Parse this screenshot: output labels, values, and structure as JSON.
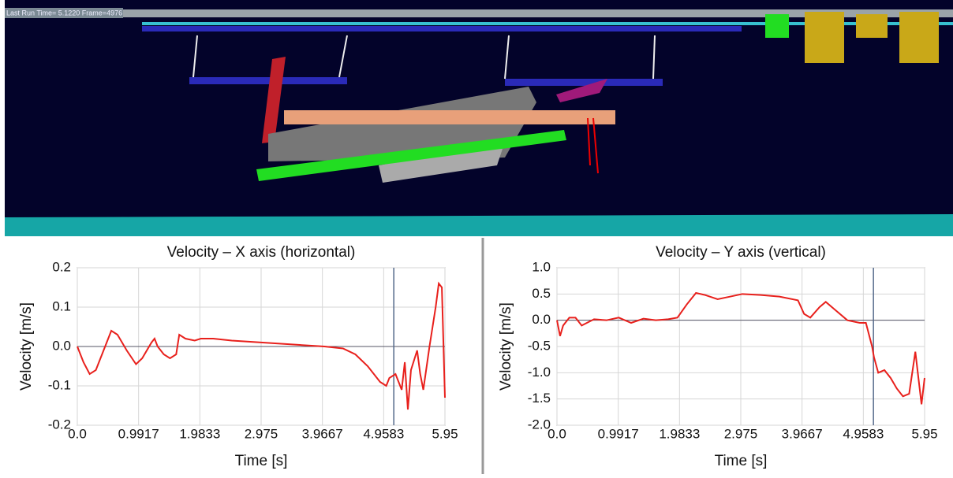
{
  "viewport_caption": "Last Run  Time= 5.1220  Frame=4976",
  "chart_data": [
    {
      "type": "line",
      "title": "Velocity – X axis (horizontal)",
      "x_label": "Time [s]",
      "y_label": "Velocity [m/s]",
      "x": [
        0,
        0.1,
        0.2,
        0.3,
        0.4,
        0.5,
        0.55,
        0.65,
        0.8,
        0.95,
        1.05,
        1.2,
        1.25,
        1.3,
        1.4,
        1.5,
        1.6,
        1.65,
        1.75,
        1.9,
        2.0,
        2.2,
        2.5,
        3.0,
        3.5,
        4.0,
        4.3,
        4.5,
        4.7,
        4.9,
        5.0,
        5.05,
        5.15,
        5.25,
        5.3,
        5.35,
        5.4,
        5.5,
        5.55,
        5.6,
        5.7,
        5.8,
        5.85,
        5.9,
        5.95
      ],
      "series": [
        {
          "color": "#e8201c",
          "values": [
            0,
            -0.04,
            -0.07,
            -0.06,
            -0.02,
            0.02,
            0.04,
            0.03,
            -0.01,
            -0.045,
            -0.03,
            0.01,
            0.02,
            0.0,
            -0.02,
            -0.03,
            -0.02,
            0.03,
            0.02,
            0.015,
            0.02,
            0.02,
            0.015,
            0.01,
            0.005,
            0.0,
            -0.005,
            -0.02,
            -0.05,
            -0.09,
            -0.1,
            -0.08,
            -0.07,
            -0.11,
            -0.04,
            -0.16,
            -0.06,
            -0.01,
            -0.07,
            -0.11,
            0.0,
            0.1,
            0.16,
            0.15,
            -0.13
          ]
        }
      ],
      "xlim": [
        0,
        5.95
      ],
      "xticks": [
        {
          "value": 0,
          "label": "0.0"
        },
        0.9917,
        1.9833,
        2.975,
        3.9667,
        4.9583,
        5.95
      ],
      "ylim": [
        -0.2,
        0.2
      ],
      "yticks": [
        -0.2,
        -0.1,
        {
          "value": 0,
          "label": "0.0"
        },
        0.1,
        0.2
      ],
      "cursor": 5.122,
      "grid": true
    },
    {
      "type": "line",
      "title": "Velocity – Y axis (vertical)",
      "x_label": "Time [s]",
      "y_label": "Velocity [m/s]",
      "x": [
        0,
        0.05,
        0.1,
        0.2,
        0.3,
        0.4,
        0.6,
        0.8,
        1.0,
        1.2,
        1.4,
        1.6,
        1.8,
        1.95,
        2.1,
        2.25,
        2.4,
        2.6,
        2.8,
        3.0,
        3.3,
        3.6,
        3.9,
        4.0,
        4.1,
        4.25,
        4.35,
        4.5,
        4.7,
        4.9,
        5.0,
        5.1,
        5.13,
        5.2,
        5.3,
        5.4,
        5.5,
        5.6,
        5.7,
        5.8,
        5.85,
        5.9,
        5.95
      ],
      "series": [
        {
          "color": "#e8201c",
          "values": [
            0,
            -0.3,
            -0.1,
            0.05,
            0.05,
            -0.1,
            0.02,
            0.0,
            0.05,
            -0.05,
            0.03,
            0.0,
            0.02,
            0.05,
            0.3,
            0.52,
            0.48,
            0.4,
            0.45,
            0.5,
            0.48,
            0.45,
            0.38,
            0.12,
            0.05,
            0.25,
            0.35,
            0.2,
            0.0,
            -0.05,
            -0.05,
            -0.5,
            -0.7,
            -1.0,
            -0.95,
            -1.1,
            -1.3,
            -1.45,
            -1.4,
            -0.6,
            -1.1,
            -1.6,
            -1.1
          ]
        }
      ],
      "xlim": [
        0,
        5.95
      ],
      "xticks": [
        {
          "value": 0,
          "label": "0.0"
        },
        0.9917,
        1.9833,
        2.975,
        3.9667,
        4.9583,
        5.95
      ],
      "ylim": [
        -2.0,
        1.0
      ],
      "yticks": [
        {
          "value": -2,
          "label": "-2.0"
        },
        -1.5,
        {
          "value": -1,
          "label": "-1.0"
        },
        -0.5,
        {
          "value": 0,
          "label": "0.0"
        },
        0.5,
        {
          "value": 1,
          "label": "1.0"
        }
      ],
      "cursor": 5.122,
      "grid": true
    }
  ]
}
